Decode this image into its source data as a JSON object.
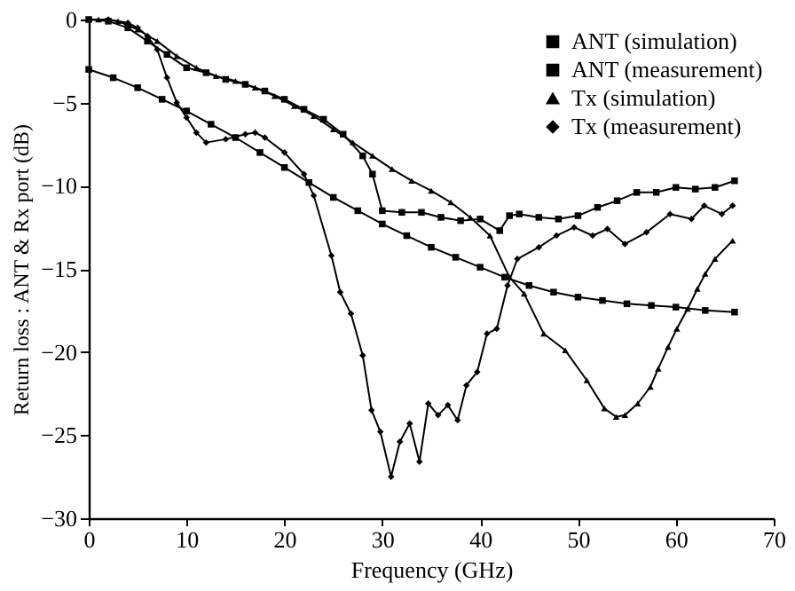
{
  "chart_data": {
    "type": "line",
    "xlabel": "Frequency (GHz)",
    "ylabel": "Return loss : ANT & Rx port (dB)",
    "xlim": [
      0,
      70
    ],
    "xticks": [
      0,
      10,
      20,
      30,
      40,
      50,
      60,
      70
    ],
    "ylim": [
      -30,
      0
    ],
    "yticks": [
      -30,
      -25,
      -20,
      -15,
      -10,
      -5,
      0
    ],
    "grid": false,
    "legend": "top right",
    "line_style": "solid",
    "series": [
      {
        "name": "ANT (simulation)",
        "color": "#000000",
        "marker": "square",
        "x": [
          0,
          2.5,
          5,
          7.5,
          10,
          12.5,
          15,
          17.5,
          20,
          22.5,
          25,
          27.5,
          30,
          32.5,
          35,
          37.5,
          40,
          42.5,
          45,
          47.5,
          50,
          52.5,
          55,
          57.5,
          60,
          63,
          66
        ],
        "values": [
          -3,
          -3.5,
          -4.1,
          -4.8,
          -5.5,
          -6.3,
          -7.1,
          -8.0,
          -8.9,
          -9.8,
          -10.7,
          -11.5,
          -12.3,
          -13.0,
          -13.7,
          -14.3,
          -14.9,
          -15.5,
          -16,
          -16.4,
          -16.7,
          -16.9,
          -17.1,
          -17.2,
          -17.3,
          -17.5,
          -17.6
        ]
      },
      {
        "name": "ANT (measurement)",
        "color": "#000000",
        "marker": "square",
        "x": [
          0,
          2,
          4,
          6,
          8,
          10,
          12,
          14,
          16,
          18,
          20,
          22,
          24,
          26,
          28,
          29,
          30,
          32,
          34,
          36,
          38,
          40,
          42,
          43,
          44,
          46,
          48,
          50,
          52,
          54,
          56,
          58,
          60,
          62,
          64,
          66
        ],
        "values": [
          0,
          -0.1,
          -0.5,
          -1.3,
          -2.1,
          -2.9,
          -3.2,
          -3.6,
          -3.9,
          -4.3,
          -4.8,
          -5.4,
          -6.0,
          -6.9,
          -8.2,
          -9.3,
          -11.5,
          -11.6,
          -11.6,
          -11.9,
          -12.1,
          -12.0,
          -12.7,
          -11.8,
          -11.7,
          -11.9,
          -12.0,
          -11.8,
          -11.3,
          -10.9,
          -10.4,
          -10.4,
          -10.1,
          -10.2,
          -10.1,
          -9.7
        ]
      },
      {
        "name": "Tx (simulation)",
        "color": "#000000",
        "marker": "triangle",
        "x": [
          1,
          3,
          5,
          7,
          9,
          11,
          13,
          15,
          17,
          19,
          21,
          23,
          25,
          27,
          29,
          31,
          33,
          35,
          37,
          39,
          41,
          43,
          44.5,
          46.5,
          48.7,
          50.9,
          52.7,
          53.9,
          54.8,
          56.1,
          57.4,
          58.2,
          59.2,
          60.1,
          61.2,
          62.2,
          63,
          64,
          65.8
        ],
        "values": [
          0,
          -0.1,
          -0.6,
          -1.3,
          -2.2,
          -2.9,
          -3.4,
          -3.7,
          -4.1,
          -4.6,
          -5.2,
          -5.8,
          -6.6,
          -7.4,
          -8.2,
          -9.0,
          -9.7,
          -10.3,
          -11.0,
          -11.9,
          -13.0,
          -15.5,
          -16.5,
          -18.9,
          -19.9,
          -21.7,
          -23.4,
          -23.9,
          -23.8,
          -23.1,
          -22.1,
          -21,
          -19.7,
          -18.6,
          -17.4,
          -16.2,
          -15.3,
          -14.4,
          -13.3
        ]
      },
      {
        "name": "Tx (measurement)",
        "color": "#000000",
        "marker": "diamond",
        "x": [
          0,
          2,
          4,
          5,
          6,
          7,
          8,
          9,
          10,
          11,
          12,
          14,
          16,
          17,
          18,
          20,
          22,
          23,
          24.8,
          25.7,
          26.8,
          28,
          28.9,
          29.8,
          30.9,
          31.8,
          32.8,
          33.8,
          34.7,
          35.7,
          36.7,
          37.7,
          38.6,
          39.7,
          40.7,
          41.7,
          42.8,
          43.8,
          46,
          47.8,
          49.6,
          51.5,
          53,
          54.8,
          57,
          59.4,
          61.6,
          62.9,
          64.7,
          65.8
        ],
        "values": [
          0,
          0,
          -0.2,
          -0.5,
          -1.0,
          -1.8,
          -3.5,
          -5.0,
          -5.9,
          -6.8,
          -7.4,
          -7.2,
          -6.9,
          -6.8,
          -7.1,
          -8.0,
          -9.3,
          -10.6,
          -14.2,
          -16.4,
          -17.7,
          -20.2,
          -23.5,
          -24.8,
          -27.5,
          -25.4,
          -24.3,
          -26.6,
          -23.1,
          -23.8,
          -23.2,
          -24.1,
          -22,
          -21.2,
          -18.9,
          -18.6,
          -16,
          -14.4,
          -13.7,
          -13,
          -12.5,
          -13,
          -12.6,
          -13.5,
          -12.8,
          -11.7,
          -12,
          -11.2,
          -11.7,
          -11.2
        ]
      }
    ]
  }
}
